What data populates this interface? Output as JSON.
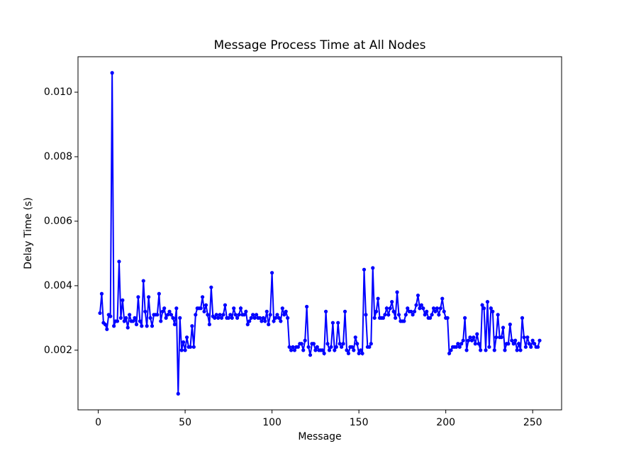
{
  "chart_data": {
    "type": "line",
    "title": "Message Process Time at All Nodes",
    "x_label": "Message",
    "y_label": "Delay Time (s)",
    "x": [
      1,
      2,
      3,
      4,
      5,
      6,
      7,
      8,
      9,
      10,
      11,
      12,
      13,
      14,
      15,
      16,
      17,
      18,
      19,
      20,
      21,
      22,
      23,
      24,
      25,
      26,
      27,
      28,
      29,
      30,
      31,
      32,
      33,
      34,
      35,
      36,
      37,
      38,
      39,
      40,
      41,
      42,
      43,
      44,
      45,
      46,
      47,
      48,
      49,
      50,
      51,
      52,
      53,
      54,
      55,
      56,
      57,
      58,
      59,
      60,
      61,
      62,
      63,
      64,
      65,
      66,
      67,
      68,
      69,
      70,
      71,
      72,
      73,
      74,
      75,
      76,
      77,
      78,
      79,
      80,
      81,
      82,
      83,
      84,
      85,
      86,
      87,
      88,
      89,
      90,
      91,
      92,
      93,
      94,
      95,
      96,
      97,
      98,
      99,
      100,
      101,
      102,
      103,
      104,
      105,
      106,
      107,
      108,
      109,
      110,
      111,
      112,
      113,
      114,
      115,
      116,
      117,
      118,
      119,
      120,
      121,
      122,
      123,
      124,
      125,
      126,
      127,
      128,
      129,
      130,
      131,
      132,
      133,
      134,
      135,
      136,
      137,
      138,
      139,
      140,
      141,
      142,
      143,
      144,
      145,
      146,
      147,
      148,
      149,
      150,
      151,
      152,
      153,
      154,
      155,
      156,
      157,
      158,
      159,
      160,
      161,
      162,
      163,
      164,
      165,
      166,
      167,
      168,
      169,
      170,
      171,
      172,
      173,
      174,
      175,
      176,
      177,
      178,
      179,
      180,
      181,
      182,
      183,
      184,
      185,
      186,
      187,
      188,
      189,
      190,
      191,
      192,
      193,
      194,
      195,
      196,
      197,
      198,
      199,
      200,
      201,
      202,
      203,
      204,
      205,
      206,
      207,
      208,
      209,
      210,
      211,
      212,
      213,
      214,
      215,
      216,
      217,
      218,
      219,
      220,
      221,
      222,
      223,
      224,
      225,
      226,
      227,
      228,
      229,
      230,
      231,
      232,
      233,
      234,
      235,
      236,
      237,
      238,
      239,
      240,
      241,
      242,
      243,
      244,
      245,
      246,
      247,
      248,
      249,
      250,
      251,
      252,
      253,
      254
    ],
    "series": [
      {
        "name": "Delay",
        "color": "#0000ff",
        "values": [
          0.00315,
          0.00375,
          0.00285,
          0.0028,
          0.00265,
          0.0031,
          0.00305,
          0.0106,
          0.00275,
          0.0029,
          0.0029,
          0.00475,
          0.003,
          0.00355,
          0.0029,
          0.003,
          0.0027,
          0.0031,
          0.0029,
          0.0029,
          0.003,
          0.0028,
          0.00365,
          0.0029,
          0.00275,
          0.00415,
          0.0032,
          0.00275,
          0.00365,
          0.003,
          0.00275,
          0.0031,
          0.0031,
          0.0031,
          0.00375,
          0.0029,
          0.0032,
          0.0033,
          0.003,
          0.0031,
          0.0032,
          0.0031,
          0.003,
          0.0028,
          0.0033,
          0.00065,
          0.003,
          0.002,
          0.00225,
          0.002,
          0.0024,
          0.0021,
          0.0021,
          0.00275,
          0.0021,
          0.0031,
          0.0033,
          0.0033,
          0.0033,
          0.00365,
          0.0032,
          0.0034,
          0.0031,
          0.0028,
          0.00395,
          0.00305,
          0.003,
          0.0031,
          0.003,
          0.0031,
          0.003,
          0.0031,
          0.0034,
          0.003,
          0.003,
          0.0031,
          0.003,
          0.0033,
          0.0031,
          0.003,
          0.0031,
          0.0033,
          0.0031,
          0.0031,
          0.0032,
          0.0028,
          0.0029,
          0.003,
          0.0031,
          0.003,
          0.0031,
          0.003,
          0.003,
          0.0029,
          0.003,
          0.0029,
          0.0032,
          0.0028,
          0.0031,
          0.0044,
          0.0029,
          0.003,
          0.0031,
          0.003,
          0.0029,
          0.0033,
          0.0031,
          0.0032,
          0.003,
          0.0021,
          0.002,
          0.0021,
          0.002,
          0.0021,
          0.0021,
          0.0022,
          0.0022,
          0.002,
          0.0023,
          0.00335,
          0.0021,
          0.00185,
          0.0022,
          0.0022,
          0.002,
          0.0021,
          0.002,
          0.002,
          0.002,
          0.0019,
          0.0032,
          0.0022,
          0.002,
          0.0021,
          0.00285,
          0.002,
          0.0021,
          0.00285,
          0.0022,
          0.0021,
          0.0022,
          0.0032,
          0.002,
          0.0019,
          0.0021,
          0.0021,
          0.002,
          0.0024,
          0.0022,
          0.0019,
          0.002,
          0.0019,
          0.0045,
          0.0031,
          0.0021,
          0.0021,
          0.0022,
          0.00455,
          0.003,
          0.0032,
          0.0036,
          0.003,
          0.003,
          0.003,
          0.0031,
          0.0033,
          0.0031,
          0.0033,
          0.0035,
          0.0032,
          0.003,
          0.0038,
          0.0031,
          0.0029,
          0.0029,
          0.0029,
          0.0031,
          0.0033,
          0.0032,
          0.0032,
          0.0031,
          0.0032,
          0.0034,
          0.0037,
          0.0033,
          0.0034,
          0.0033,
          0.0031,
          0.0032,
          0.003,
          0.003,
          0.0031,
          0.0033,
          0.0032,
          0.0033,
          0.0031,
          0.0033,
          0.0036,
          0.0032,
          0.003,
          0.003,
          0.0019,
          0.002,
          0.0021,
          0.0021,
          0.0021,
          0.0022,
          0.0021,
          0.0022,
          0.0023,
          0.003,
          0.002,
          0.0023,
          0.0024,
          0.0023,
          0.0024,
          0.0022,
          0.0025,
          0.0022,
          0.002,
          0.0034,
          0.0033,
          0.002,
          0.0035,
          0.0021,
          0.0033,
          0.0032,
          0.002,
          0.0024,
          0.0031,
          0.0024,
          0.0024,
          0.0027,
          0.002,
          0.0022,
          0.0022,
          0.0028,
          0.0023,
          0.0022,
          0.0023,
          0.002,
          0.0022,
          0.002,
          0.003,
          0.0024,
          0.0021,
          0.0024,
          0.0022,
          0.0021,
          0.0023,
          0.0022,
          0.0021,
          0.0021,
          0.0023
        ]
      }
    ],
    "xlim": [
      -11.65,
      266.65
    ],
    "xticks": [
      0,
      50,
      100,
      150,
      200,
      250
    ],
    "ylim": [
      0.00015,
      0.0111
    ],
    "yticks": [
      0.002,
      0.004,
      0.006,
      0.008,
      {
        "value": 0.01,
        "label": "0.010"
      }
    ],
    "markers": true
  }
}
